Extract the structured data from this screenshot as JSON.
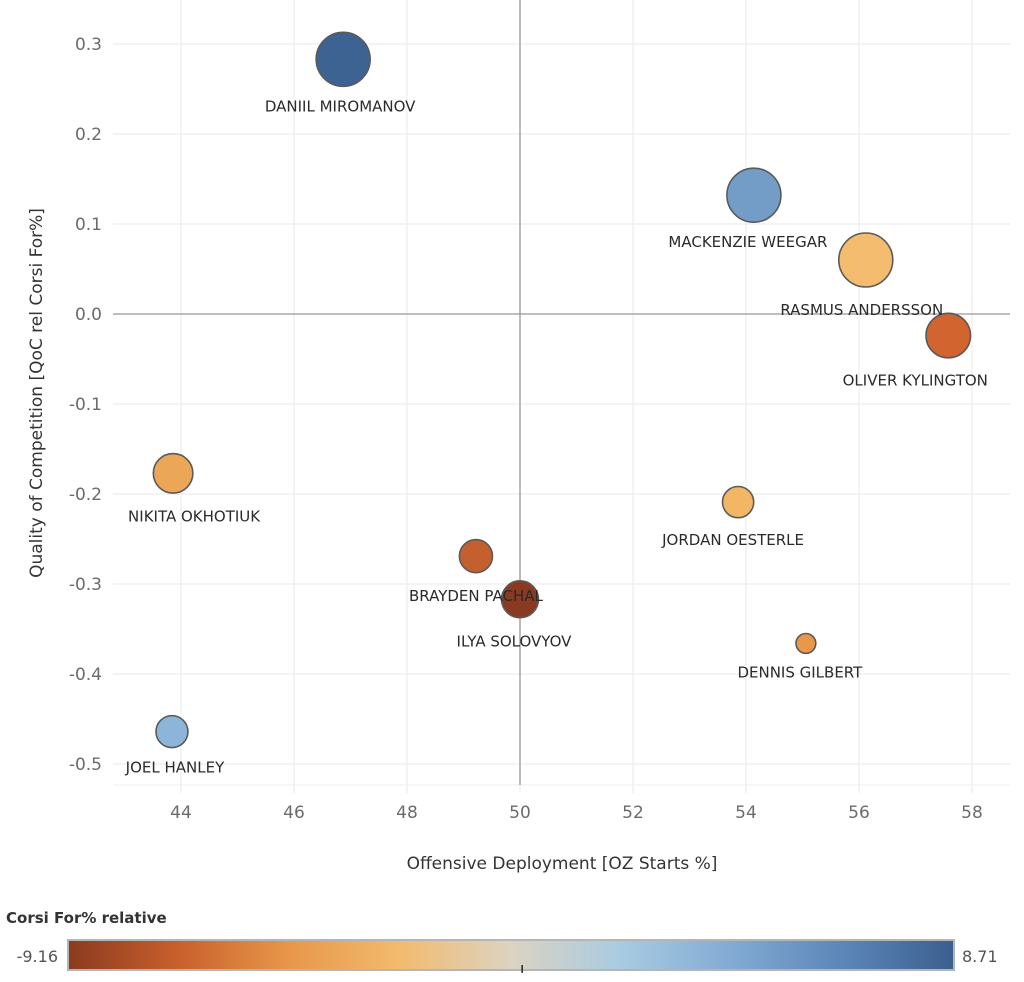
{
  "chart_data": {
    "type": "scatter",
    "title": "",
    "xlabel": "Offensive Deployment [OZ Starts %]",
    "ylabel": "Quality of Competition [QoC rel Corsi For%]",
    "xlim": [
      43,
      58.7
    ],
    "ylim": [
      -0.52,
      0.34
    ],
    "x_ticks": [
      44,
      46,
      48,
      50,
      52,
      54,
      56,
      58
    ],
    "x_tick_labels": [
      "44",
      "46",
      "48",
      "50",
      "52",
      "54",
      "56",
      "58"
    ],
    "y_ticks": [
      0.3,
      0.2,
      0.1,
      0.0,
      -0.1,
      -0.2,
      -0.3,
      -0.4,
      -0.5
    ],
    "y_tick_labels": [
      "0.3",
      "0.2",
      "0.1",
      "0.0",
      "-0.1",
      "-0.2",
      "-0.3",
      "-0.4",
      "-0.5"
    ],
    "reference_lines": {
      "x": 50,
      "y": 0.0
    },
    "grid": true,
    "size_encoding": "bubble size (relative)",
    "color_legend": {
      "title": "Corsi For% relative",
      "min_label": "-9.16",
      "max_label": "8.71",
      "min": -9.16,
      "max": 8.71,
      "mid_marker": 0,
      "placement": "bottom",
      "stops": [
        "#8b3a20",
        "#c8602c",
        "#e8974a",
        "#f2bb6e",
        "#dcd3c2",
        "#a8cbe2",
        "#82aad3",
        "#5c86b8",
        "#3a5f8f"
      ]
    },
    "points": [
      {
        "name": "DANIIL MIROMANOV",
        "x": 46.87,
        "y": 0.283,
        "size": 1.0,
        "corsi_rel": 8.71,
        "color": "#3d6392",
        "label_pos": "below"
      },
      {
        "name": "MACKENZIE WEEGAR",
        "x": 54.14,
        "y": 0.132,
        "size": 1.0,
        "corsi_rel": 4.8,
        "color": "#739dc6",
        "label_pos": "below"
      },
      {
        "name": "RASMUS ANDERSSON",
        "x": 56.12,
        "y": 0.06,
        "size": 1.0,
        "corsi_rel": -1.5,
        "color": "#f3bc6e",
        "label_pos": "below"
      },
      {
        "name": "OLIVER KYLINGTON",
        "x": 57.58,
        "y": -0.024,
        "size": 0.75,
        "corsi_rel": -6.0,
        "color": "#d2652f",
        "label_pos": "below"
      },
      {
        "name": "NIKITA OKHOTIUK",
        "x": 43.86,
        "y": -0.177,
        "size": 0.62,
        "corsi_rel": -3.0,
        "color": "#eba657",
        "label_pos": "below"
      },
      {
        "name": "JOEL HANLEY",
        "x": 43.84,
        "y": -0.464,
        "size": 0.42,
        "corsi_rel": 2.5,
        "color": "#8db4d9",
        "label_pos": "below"
      },
      {
        "name": "BRAYDEN PACHAL",
        "x": 49.22,
        "y": -0.269,
        "size": 0.45,
        "corsi_rel": -6.5,
        "color": "#c45f2e",
        "label_pos": "below"
      },
      {
        "name": "ILYA SOLOVYOV",
        "x": 50.0,
        "y": -0.317,
        "size": 0.55,
        "corsi_rel": -9.16,
        "color": "#8a3a20",
        "label_pos": "below"
      },
      {
        "name": "JORDAN OESTERLE",
        "x": 53.86,
        "y": -0.209,
        "size": 0.4,
        "corsi_rel": -1.8,
        "color": "#f2b665",
        "label_pos": "below"
      },
      {
        "name": "DENNIS GILBERT",
        "x": 55.06,
        "y": -0.366,
        "size": 0.1,
        "corsi_rel": -3.5,
        "color": "#e89848",
        "label_pos": "below"
      }
    ]
  }
}
